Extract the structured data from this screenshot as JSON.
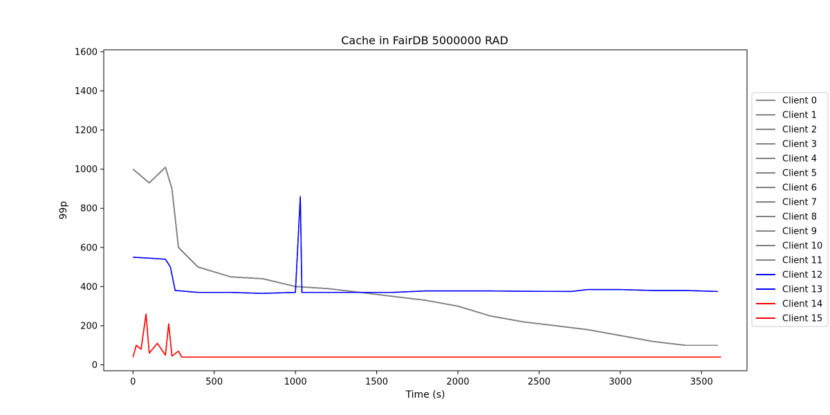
{
  "chart_data": {
    "type": "line",
    "title": "Cache in  FairDB 5000000 RAD",
    "xlabel": "Time (s)",
    "ylabel": "99p",
    "xlim": [
      -180,
      3780
    ],
    "ylim": [
      -30,
      1610
    ],
    "xticks": [
      0,
      500,
      1000,
      1500,
      2000,
      2500,
      3000,
      3500
    ],
    "yticks": [
      0,
      200,
      400,
      600,
      800,
      1000,
      1200,
      1400,
      1600
    ],
    "grid": false,
    "legend_position": "right, outside plot",
    "colors": {
      "gray_clients": "#808080",
      "blue_clients": "#0000ff",
      "red_clients": "#ff0000"
    },
    "series": [
      {
        "name": "Client 0",
        "color": "#808080",
        "x": [
          0,
          100,
          200,
          240,
          280,
          400,
          600,
          800,
          1000,
          1200,
          1400,
          1600,
          1800,
          2000,
          2200,
          2400,
          2600,
          2800,
          3000,
          3200,
          3400,
          3600
        ],
        "y": [
          1000,
          930,
          1010,
          900,
          600,
          500,
          450,
          440,
          400,
          390,
          370,
          350,
          330,
          300,
          250,
          220,
          200,
          180,
          150,
          120,
          100,
          100
        ]
      },
      {
        "name": "Client 1",
        "color": "#808080",
        "x": [
          0,
          100,
          200,
          240,
          280,
          400,
          600,
          800,
          1000,
          1200,
          1400,
          1600,
          1800,
          2000,
          2200,
          2400,
          2600,
          2800,
          3000,
          3200,
          3400,
          3600
        ],
        "y": [
          1000,
          930,
          1010,
          900,
          600,
          500,
          450,
          440,
          400,
          390,
          370,
          350,
          330,
          300,
          250,
          220,
          200,
          180,
          150,
          120,
          100,
          100
        ]
      },
      {
        "name": "Client 2",
        "color": "#808080",
        "x": [
          0,
          100,
          200,
          240,
          280,
          400,
          600,
          800,
          1000,
          1200,
          1400,
          1600,
          1800,
          2000,
          2200,
          2400,
          2600,
          2800,
          3000,
          3200,
          3400,
          3600
        ],
        "y": [
          1000,
          930,
          1010,
          900,
          600,
          500,
          450,
          440,
          400,
          390,
          370,
          350,
          330,
          300,
          250,
          220,
          200,
          180,
          150,
          120,
          100,
          100
        ]
      },
      {
        "name": "Client 3",
        "color": "#808080",
        "x": [
          0,
          100,
          200,
          240,
          280,
          400,
          600,
          800,
          1000,
          1200,
          1400,
          1600,
          1800,
          2000,
          2200,
          2400,
          2600,
          2800,
          3000,
          3200,
          3400,
          3600
        ],
        "y": [
          1000,
          930,
          1010,
          900,
          600,
          500,
          450,
          440,
          400,
          390,
          370,
          350,
          330,
          300,
          250,
          220,
          200,
          180,
          150,
          120,
          100,
          100
        ]
      },
      {
        "name": "Client 4",
        "color": "#808080",
        "x": [
          0,
          100,
          200,
          240,
          280,
          400,
          600,
          800,
          1000,
          1200,
          1400,
          1600,
          1800,
          2000,
          2200,
          2400,
          2600,
          2800,
          3000,
          3200,
          3400,
          3600
        ],
        "y": [
          1000,
          930,
          1010,
          900,
          600,
          500,
          450,
          440,
          400,
          390,
          370,
          350,
          330,
          300,
          250,
          220,
          200,
          180,
          150,
          120,
          100,
          100
        ]
      },
      {
        "name": "Client 5",
        "color": "#808080",
        "x": [
          0,
          100,
          200,
          240,
          280,
          400,
          600,
          800,
          1000,
          1200,
          1400,
          1600,
          1800,
          2000,
          2200,
          2400,
          2600,
          2800,
          3000,
          3200,
          3400,
          3600
        ],
        "y": [
          1000,
          930,
          1010,
          900,
          600,
          500,
          450,
          440,
          400,
          390,
          370,
          350,
          330,
          300,
          250,
          220,
          200,
          180,
          150,
          120,
          100,
          100
        ]
      },
      {
        "name": "Client 6",
        "color": "#808080",
        "x": [
          0,
          100,
          200,
          240,
          280,
          400,
          600,
          800,
          1000,
          1200,
          1400,
          1600,
          1800,
          2000,
          2200,
          2400,
          2600,
          2800,
          3000,
          3200,
          3400,
          3600
        ],
        "y": [
          1000,
          930,
          1010,
          900,
          600,
          500,
          450,
          440,
          400,
          390,
          370,
          350,
          330,
          300,
          250,
          220,
          200,
          180,
          150,
          120,
          100,
          100
        ]
      },
      {
        "name": "Client 7",
        "color": "#808080",
        "x": [
          0,
          100,
          200,
          240,
          280,
          400,
          600,
          800,
          1000,
          1200,
          1400,
          1600,
          1800,
          2000,
          2200,
          2400,
          2600,
          2800,
          3000,
          3200,
          3400,
          3600
        ],
        "y": [
          1000,
          930,
          1010,
          900,
          600,
          500,
          450,
          440,
          400,
          390,
          370,
          350,
          330,
          300,
          250,
          220,
          200,
          180,
          150,
          120,
          100,
          100
        ]
      },
      {
        "name": "Client 8",
        "color": "#808080",
        "x": [
          0,
          100,
          200,
          240,
          280,
          400,
          600,
          800,
          1000,
          1200,
          1400,
          1600,
          1800,
          2000,
          2200,
          2400,
          2600,
          2800,
          3000,
          3200,
          3400,
          3600
        ],
        "y": [
          1000,
          930,
          1010,
          900,
          600,
          500,
          450,
          440,
          400,
          390,
          370,
          350,
          330,
          300,
          250,
          220,
          200,
          180,
          150,
          120,
          100,
          100
        ]
      },
      {
        "name": "Client 9",
        "color": "#808080",
        "x": [
          0,
          100,
          200,
          240,
          280,
          400,
          600,
          800,
          1000,
          1200,
          1400,
          1600,
          1800,
          2000,
          2200,
          2400,
          2600,
          2800,
          3000,
          3200,
          3400,
          3600
        ],
        "y": [
          1000,
          930,
          1010,
          900,
          600,
          500,
          450,
          440,
          400,
          390,
          370,
          350,
          330,
          300,
          250,
          220,
          200,
          180,
          150,
          120,
          100,
          100
        ]
      },
      {
        "name": "Client 10",
        "color": "#808080",
        "x": [
          0,
          100,
          200,
          240,
          280,
          400,
          600,
          800,
          1000,
          1200,
          1400,
          1600,
          1800,
          2000,
          2200,
          2400,
          2600,
          2800,
          3000,
          3200,
          3400,
          3600
        ],
        "y": [
          1000,
          930,
          1010,
          900,
          600,
          500,
          450,
          440,
          400,
          390,
          370,
          350,
          330,
          300,
          250,
          220,
          200,
          180,
          150,
          120,
          100,
          100
        ]
      },
      {
        "name": "Client 11",
        "color": "#808080",
        "x": [
          0,
          100,
          200,
          240,
          280,
          400,
          600,
          800,
          1000,
          1200,
          1400,
          1600,
          1800,
          2000,
          2200,
          2400,
          2600,
          2800,
          3000,
          3200,
          3400,
          3600
        ],
        "y": [
          1000,
          930,
          1010,
          900,
          600,
          500,
          450,
          440,
          400,
          390,
          370,
          350,
          330,
          300,
          250,
          220,
          200,
          180,
          150,
          120,
          100,
          100
        ]
      },
      {
        "name": "Client 12",
        "color": "#0000ff",
        "x": [
          0,
          100,
          200,
          230,
          260,
          400,
          600,
          800,
          1000,
          1030,
          1040,
          1200,
          1400,
          1600,
          1800,
          2000,
          2200,
          2400,
          2700,
          2800,
          3000,
          3200,
          3400,
          3600
        ],
        "y": [
          550,
          545,
          540,
          500,
          380,
          370,
          370,
          365,
          370,
          860,
          370,
          370,
          370,
          370,
          378,
          378,
          378,
          376,
          375,
          385,
          385,
          380,
          380,
          375
        ]
      },
      {
        "name": "Client 13",
        "color": "#0000ff",
        "x": [
          0,
          100,
          200,
          230,
          260,
          400,
          600,
          800,
          1000,
          1030,
          1040,
          1200,
          1400,
          1600,
          1800,
          2000,
          2200,
          2400,
          2700,
          2800,
          3000,
          3200,
          3400,
          3600
        ],
        "y": [
          550,
          545,
          540,
          500,
          380,
          370,
          370,
          365,
          370,
          860,
          370,
          370,
          370,
          370,
          378,
          378,
          378,
          376,
          375,
          385,
          385,
          380,
          380,
          375
        ]
      },
      {
        "name": "Client 14",
        "color": "#ff0000",
        "x": [
          0,
          20,
          50,
          80,
          100,
          150,
          200,
          220,
          240,
          280,
          300,
          500,
          1000,
          1500,
          2000,
          2500,
          3000,
          3500,
          3620
        ],
        "y": [
          40,
          100,
          80,
          260,
          60,
          110,
          50,
          210,
          45,
          70,
          40,
          40,
          40,
          40,
          40,
          40,
          40,
          40,
          40
        ]
      },
      {
        "name": "Client 15",
        "color": "#ff0000",
        "x": [
          0,
          20,
          50,
          80,
          100,
          150,
          200,
          220,
          240,
          280,
          300,
          500,
          1000,
          1500,
          2000,
          2500,
          3000,
          3500,
          3620
        ],
        "y": [
          40,
          100,
          80,
          260,
          60,
          110,
          50,
          210,
          45,
          70,
          40,
          40,
          40,
          40,
          40,
          40,
          40,
          40,
          40
        ]
      }
    ]
  }
}
